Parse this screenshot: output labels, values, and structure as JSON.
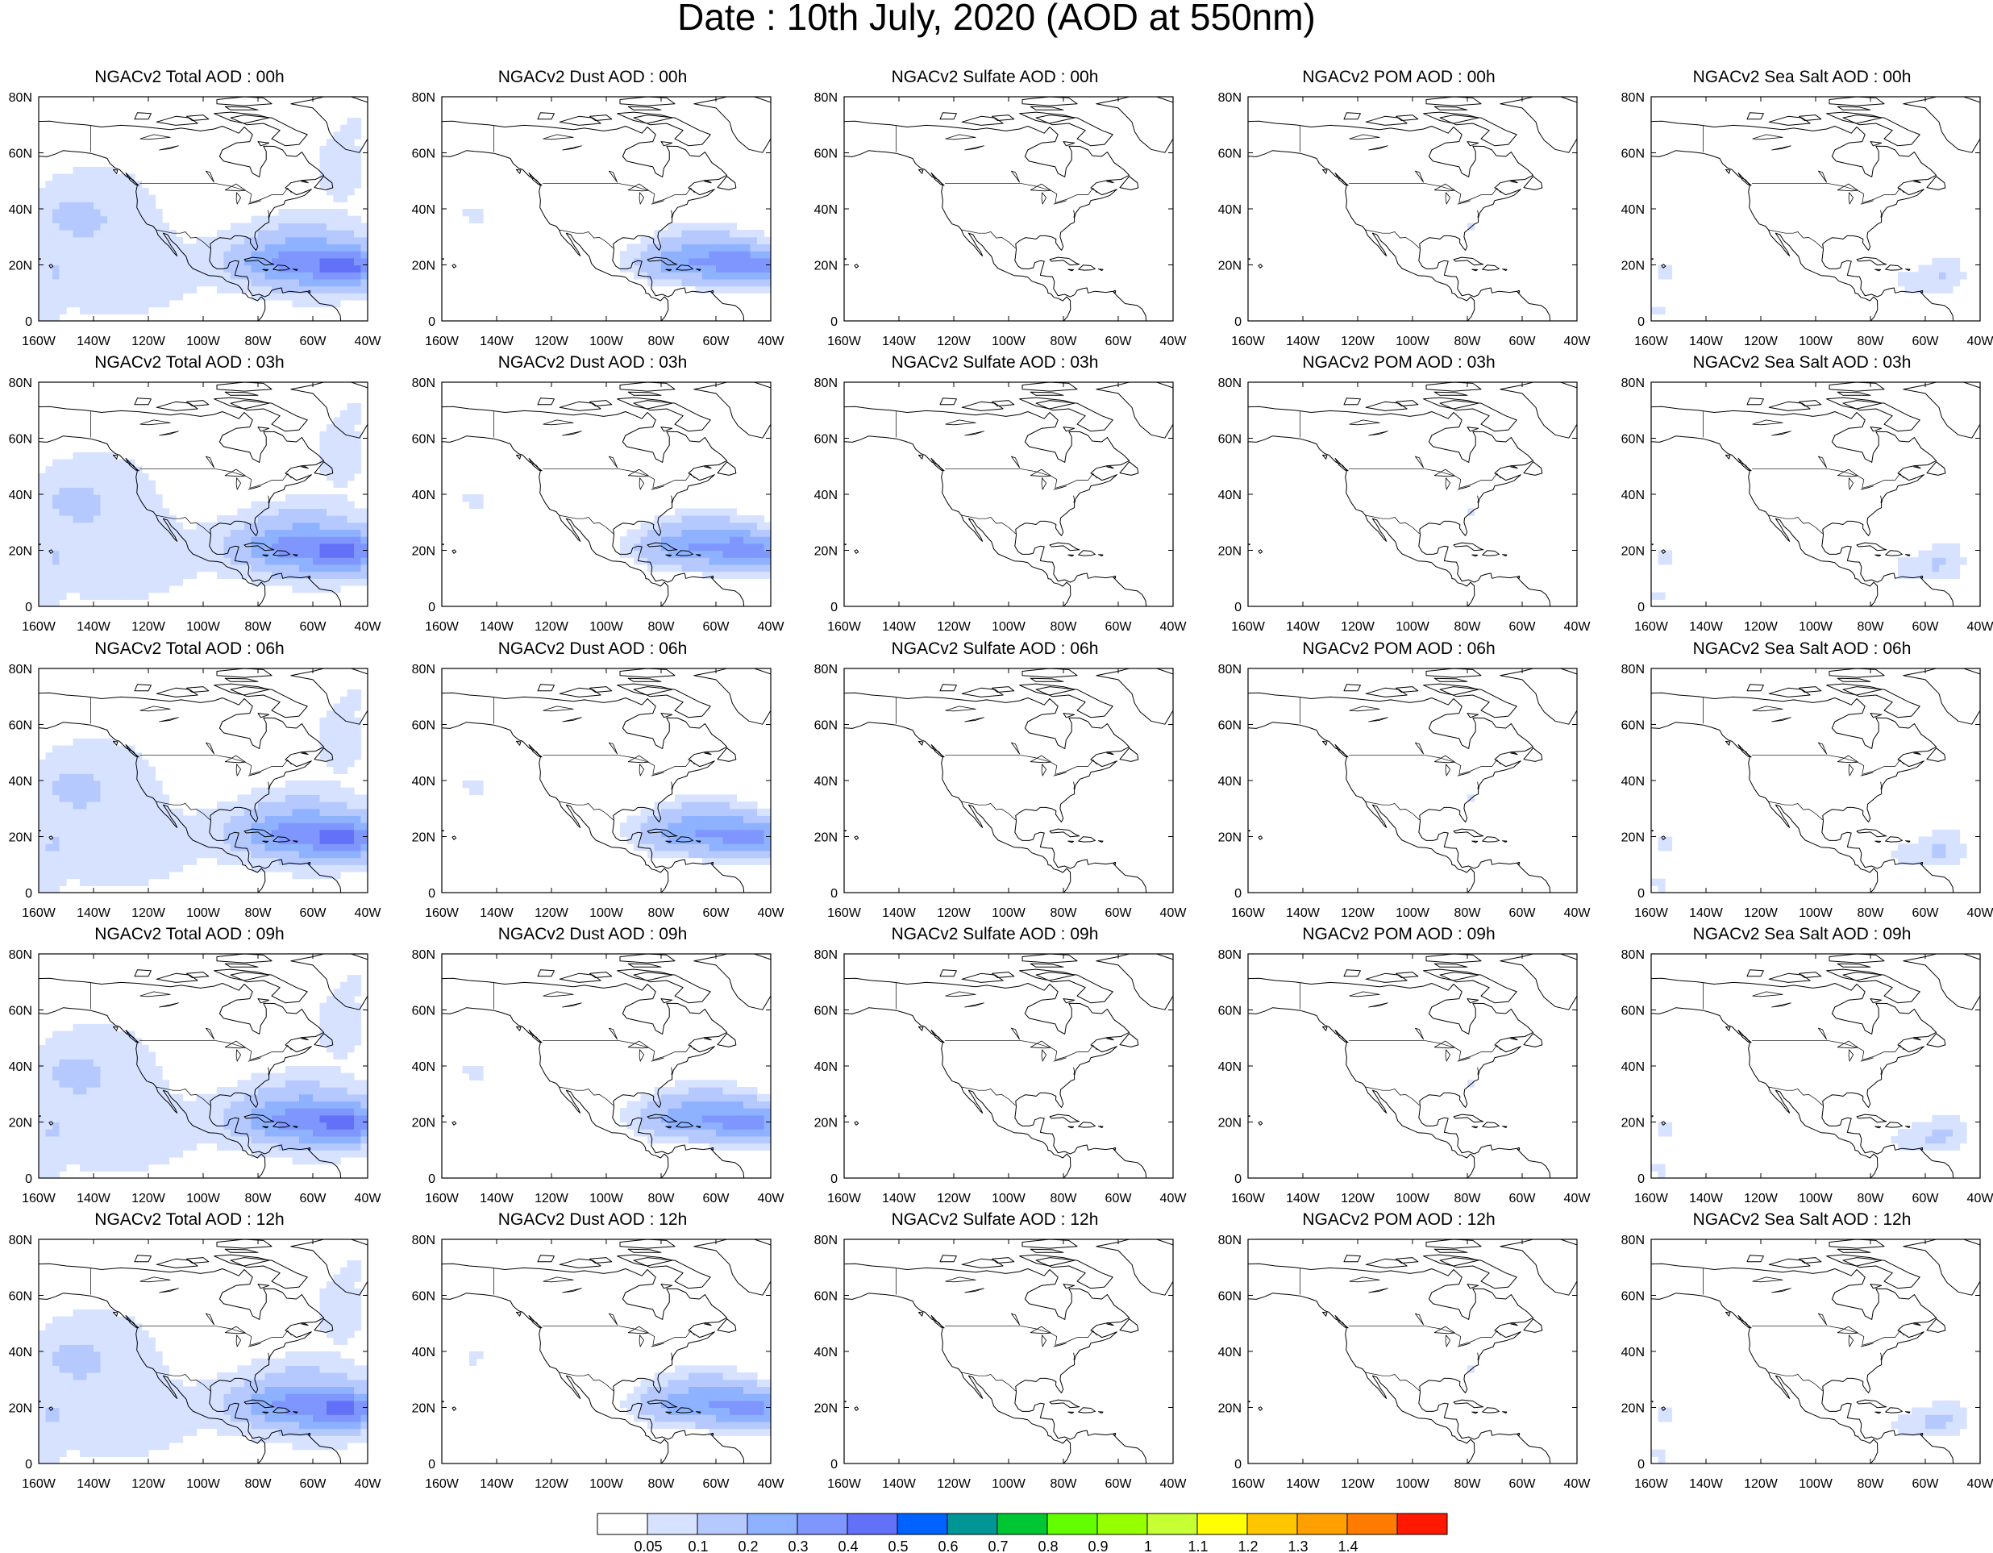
{
  "title": "Date : 10th July, 2020 (AOD at 550nm)",
  "panels": [
    {
      "title": "NGACv2 Total AOD : 00h",
      "species": "total",
      "hour": 0
    },
    {
      "title": "NGACv2 Dust AOD : 00h",
      "species": "dust",
      "hour": 0
    },
    {
      "title": "NGACv2 Sulfate AOD : 00h",
      "species": "sulfate",
      "hour": 0
    },
    {
      "title": "NGACv2 POM AOD : 00h",
      "species": "pom",
      "hour": 0
    },
    {
      "title": "NGACv2 Sea Salt AOD : 00h",
      "species": "seasalt",
      "hour": 0
    },
    {
      "title": "NGACv2 Total AOD : 03h",
      "species": "total",
      "hour": 3
    },
    {
      "title": "NGACv2 Dust AOD : 03h",
      "species": "dust",
      "hour": 3
    },
    {
      "title": "NGACv2 Sulfate AOD : 03h",
      "species": "sulfate",
      "hour": 3
    },
    {
      "title": "NGACv2 POM AOD : 03h",
      "species": "pom",
      "hour": 3
    },
    {
      "title": "NGACv2 Sea Salt AOD : 03h",
      "species": "seasalt",
      "hour": 3
    },
    {
      "title": "NGACv2 Total AOD : 06h",
      "species": "total",
      "hour": 6
    },
    {
      "title": "NGACv2 Dust AOD : 06h",
      "species": "dust",
      "hour": 6
    },
    {
      "title": "NGACv2 Sulfate AOD : 06h",
      "species": "sulfate",
      "hour": 6
    },
    {
      "title": "NGACv2 POM AOD : 06h",
      "species": "pom",
      "hour": 6
    },
    {
      "title": "NGACv2 Sea Salt AOD : 06h",
      "species": "seasalt",
      "hour": 6
    },
    {
      "title": "NGACv2 Total AOD : 09h",
      "species": "total",
      "hour": 9
    },
    {
      "title": "NGACv2 Dust AOD : 09h",
      "species": "dust",
      "hour": 9
    },
    {
      "title": "NGACv2 Sulfate AOD : 09h",
      "species": "sulfate",
      "hour": 9
    },
    {
      "title": "NGACv2 POM AOD : 09h",
      "species": "pom",
      "hour": 9
    },
    {
      "title": "NGACv2 Sea Salt  AOD : 09h",
      "species": "seasalt",
      "hour": 9
    },
    {
      "title": "NGACv2 Total AOD  : 12h",
      "species": "total",
      "hour": 12
    },
    {
      "title": "NGACv2 Dust AOD : 12h",
      "species": "dust",
      "hour": 12
    },
    {
      "title": "NGACv2 Sulfate AOD : 12h",
      "species": "sulfate",
      "hour": 12
    },
    {
      "title": "NGACv2 POM  AOD : 12h",
      "species": "pom",
      "hour": 12
    },
    {
      "title": "NGACv2 Sea Salt  AOD : 12h",
      "species": "seasalt",
      "hour": 12
    }
  ],
  "axes": {
    "lon_range": [
      -160,
      -40
    ],
    "lat_range": [
      0,
      80
    ],
    "x_ticks": [
      "160W",
      "140W",
      "120W",
      "100W",
      "80W",
      "60W",
      "40W"
    ],
    "y_ticks": [
      "0",
      "20N",
      "40N",
      "60N",
      "80N"
    ]
  },
  "colorbar": {
    "colors": [
      "#ffffff",
      "#d6e2ff",
      "#b5c9ff",
      "#8eb2ff",
      "#7f96ff",
      "#6370f8",
      "#0063ff",
      "#009696",
      "#00c633",
      "#63ff00",
      "#96ff00",
      "#c6ff33",
      "#ffff00",
      "#ffc600",
      "#ffa000",
      "#ff7c00",
      "#ff1900"
    ],
    "labels": [
      "0.05",
      "0.1",
      "0.2",
      "0.3",
      "0.4",
      "0.5",
      "0.6",
      "0.7",
      "0.8",
      "0.9",
      "1",
      "1.1",
      "1.2",
      "1.3",
      "1.4"
    ]
  }
}
